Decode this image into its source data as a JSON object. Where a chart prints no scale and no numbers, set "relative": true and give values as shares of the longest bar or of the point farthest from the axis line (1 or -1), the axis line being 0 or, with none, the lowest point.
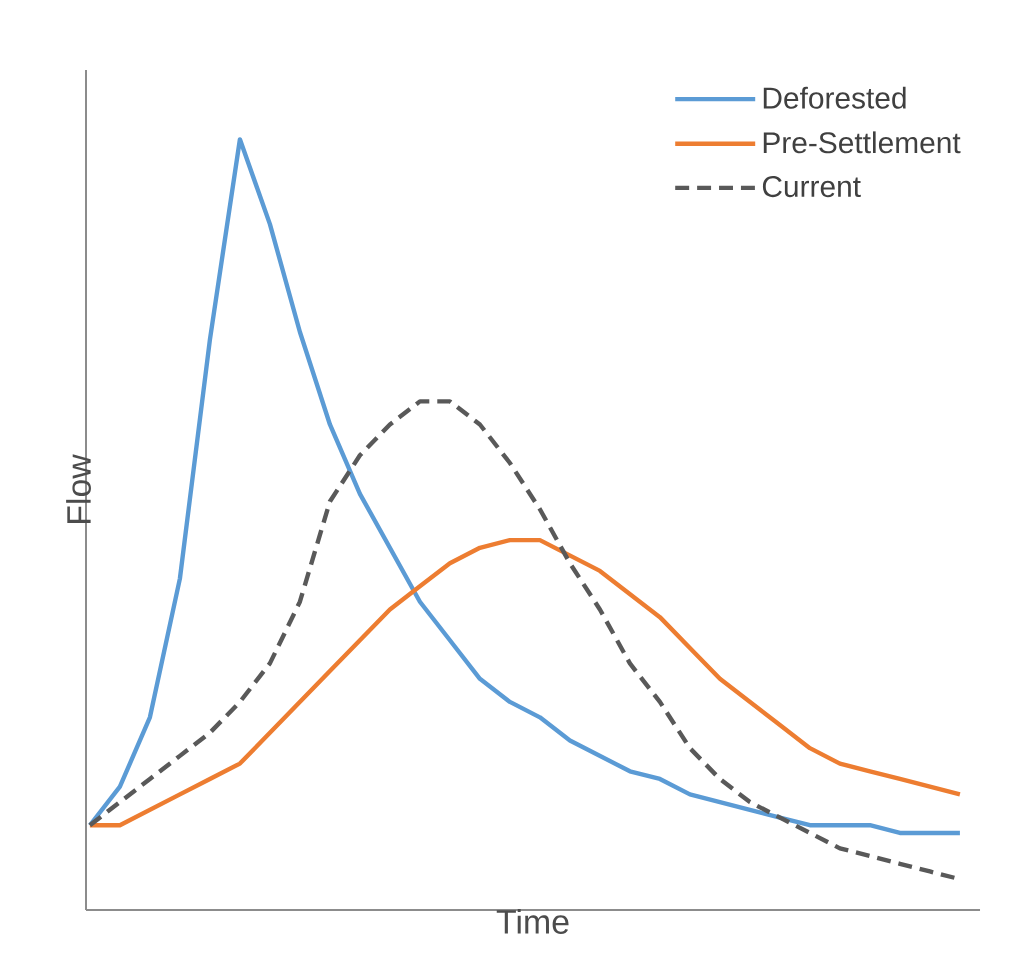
{
  "chart_data": {
    "type": "line",
    "relative": true,
    "xlabel": "Time",
    "ylabel": "Flow",
    "legend": "top right",
    "marker": "none",
    "categories": [
      null,
      null,
      null,
      null,
      null,
      null,
      null,
      null,
      null,
      null,
      null,
      null,
      null,
      null,
      null,
      null,
      null,
      null,
      null,
      null,
      null,
      null,
      null,
      null,
      null,
      null,
      null,
      null,
      null,
      null
    ],
    "series": [
      {
        "name": "Deforested",
        "color": "#5b9bd5",
        "line_style": "solid",
        "values": [
          0.11,
          0.16,
          0.25,
          0.43,
          0.74,
          1,
          0.89,
          0.75,
          0.63,
          0.54,
          0.47,
          0.4,
          0.35,
          0.3,
          0.27,
          0.25,
          0.22,
          0.2,
          0.18,
          0.17,
          0.15,
          0.14,
          0.13,
          0.12,
          0.11,
          0.11,
          0.11,
          0.1,
          0.1,
          0.1
        ]
      },
      {
        "name": "Pre-Settlement",
        "color": "#ed7d31",
        "line_style": "solid",
        "values": [
          0.11,
          0.11,
          0.13,
          0.15,
          0.17,
          0.19,
          0.23,
          0.27,
          0.31,
          0.35,
          0.39,
          0.42,
          0.45,
          0.47,
          0.48,
          0.48,
          0.46,
          0.44,
          0.41,
          0.38,
          0.34,
          0.3,
          0.27,
          0.24,
          0.21,
          0.19,
          0.18,
          0.17,
          0.16,
          0.15
        ]
      },
      {
        "name": "Current",
        "color": "#595959",
        "line_style": "dashed",
        "values": [
          0.11,
          0.14,
          0.17,
          0.2,
          0.23,
          0.27,
          0.32,
          0.4,
          0.53,
          0.59,
          0.63,
          0.66,
          0.66,
          0.63,
          0.58,
          0.52,
          0.45,
          0.39,
          0.32,
          0.27,
          0.21,
          0.17,
          0.14,
          0.12,
          0.1,
          0.08,
          0.07,
          0.06,
          0.05,
          0.04
        ]
      }
    ]
  }
}
